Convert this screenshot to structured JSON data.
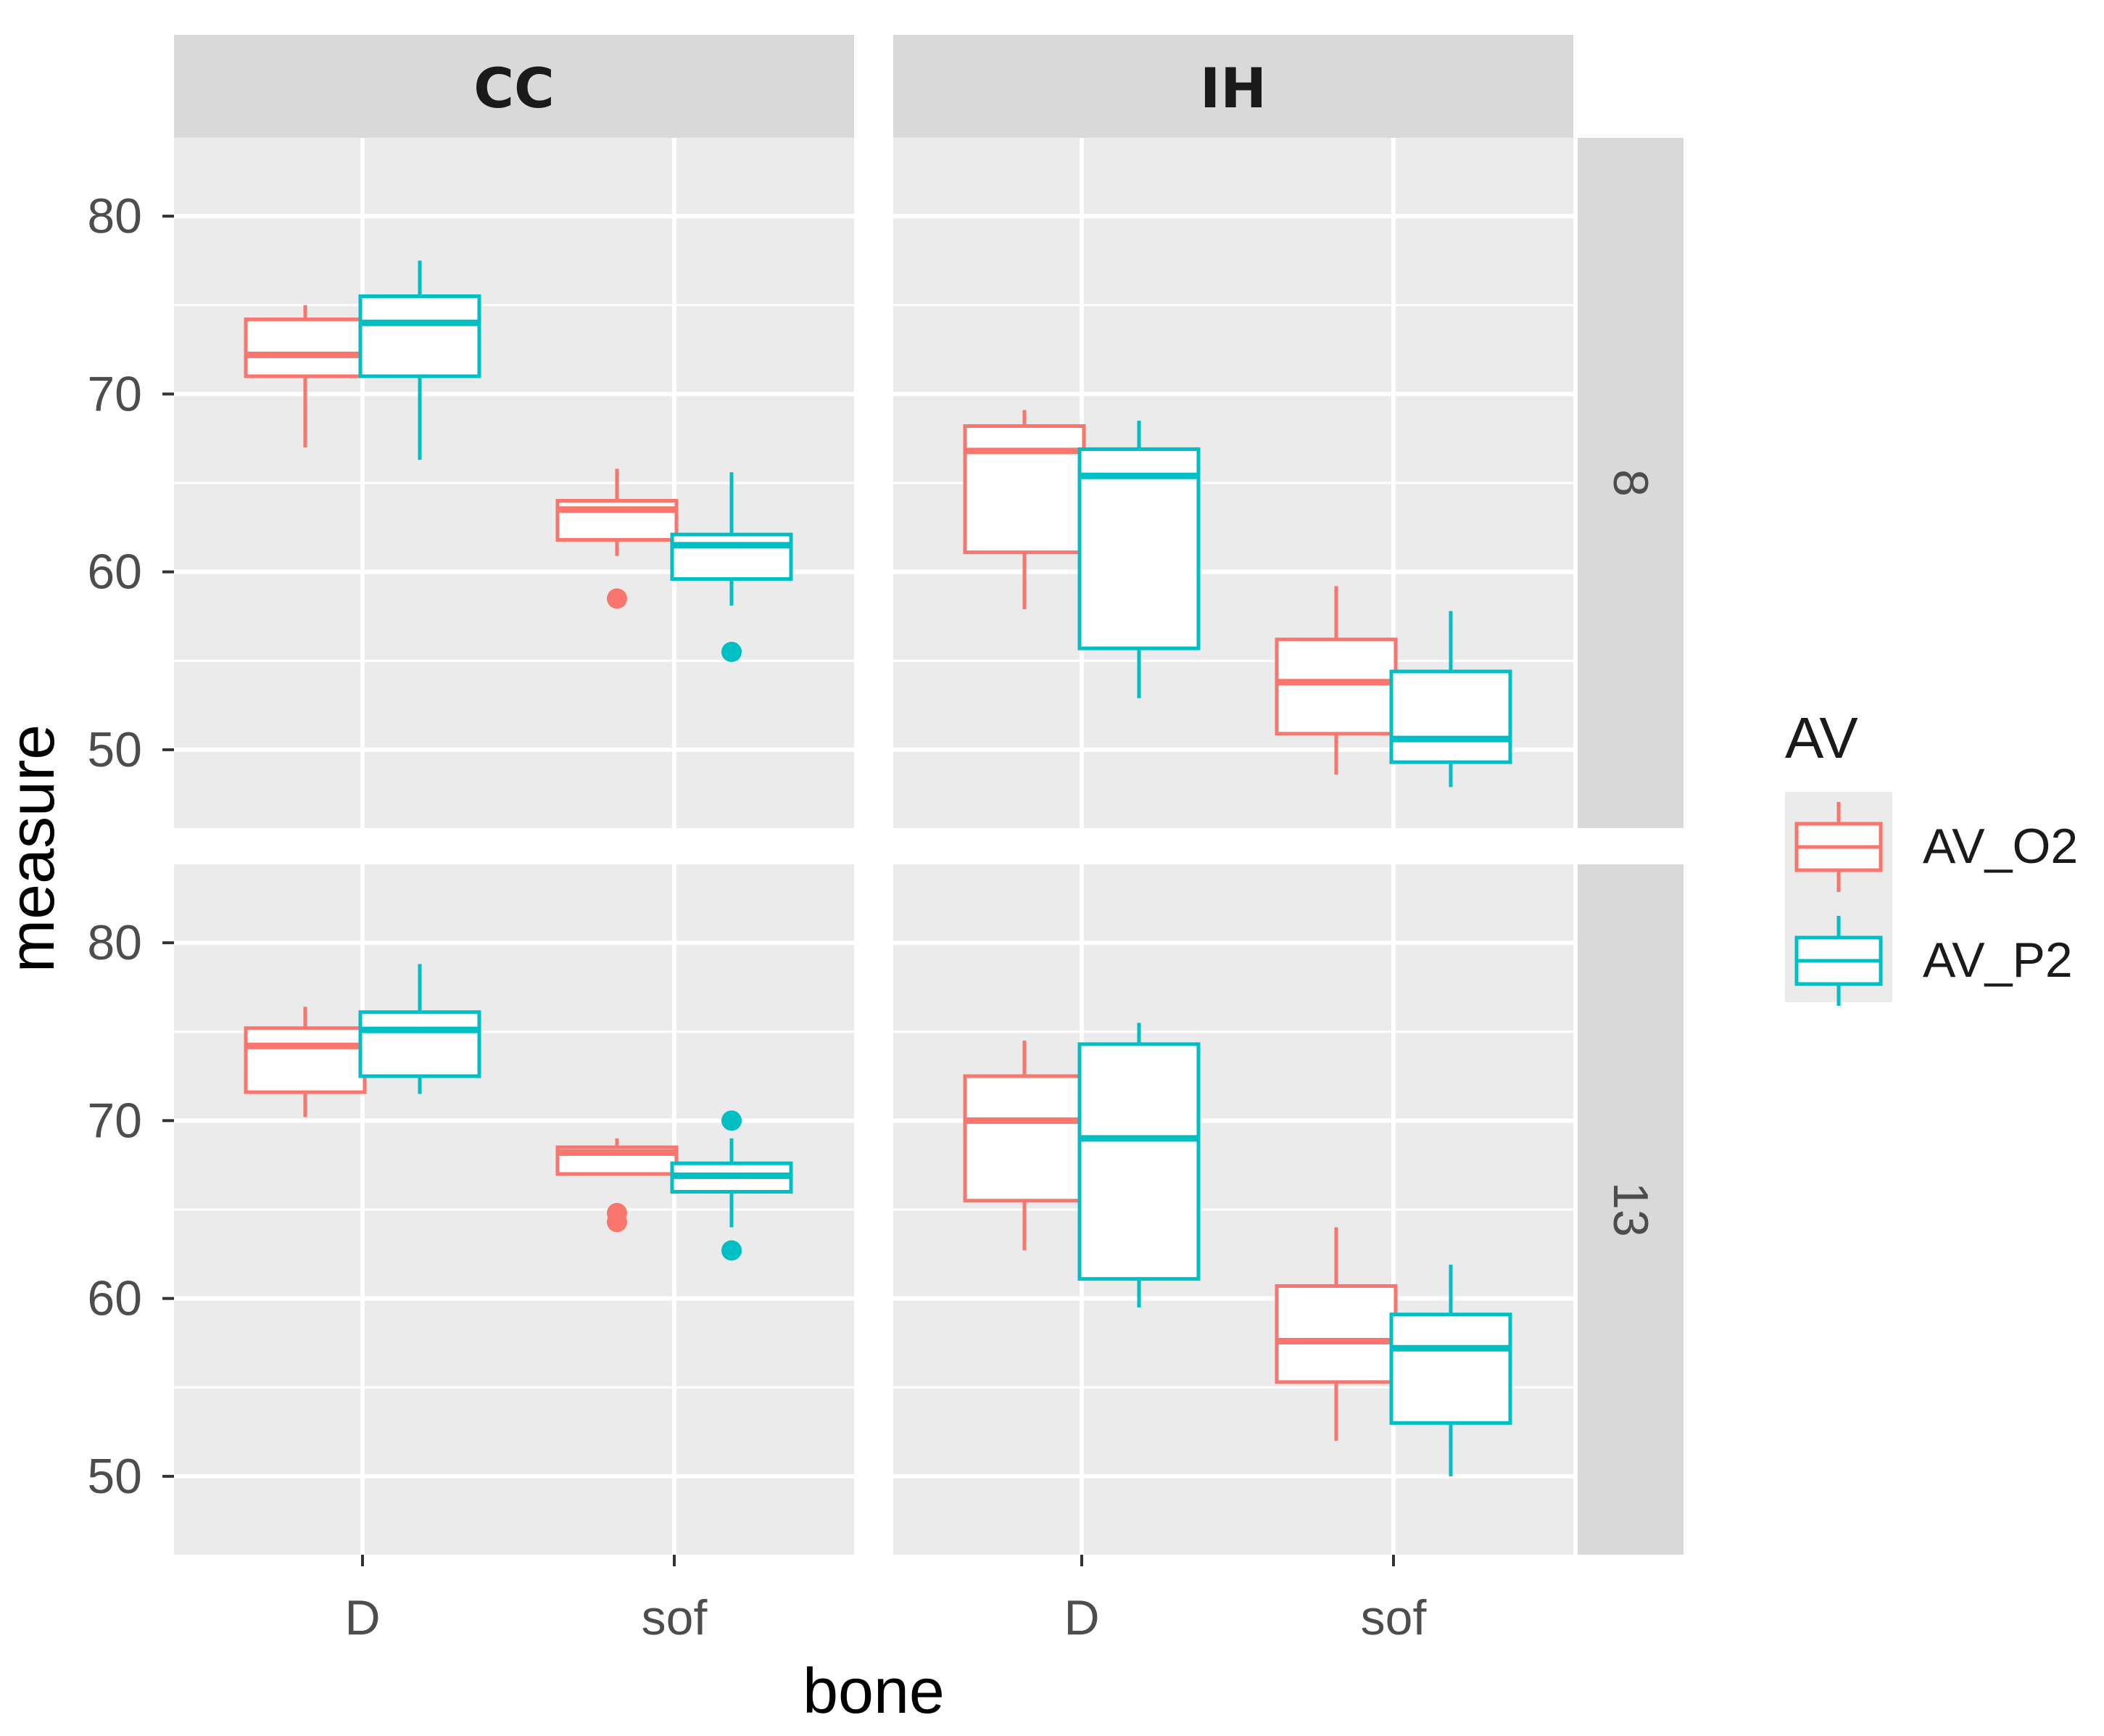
{
  "chart_data": {
    "type": "boxplot",
    "xlabel": "bone",
    "ylabel": "measure",
    "ylim": [
      46,
      84
    ],
    "yticks": [
      50,
      60,
      70,
      80
    ],
    "categories": [
      "D",
      "sof"
    ],
    "facet_cols": [
      "CC",
      "IH"
    ],
    "facet_rows": [
      "8",
      "13"
    ],
    "legend": {
      "title": "AV",
      "position": "right",
      "entries": [
        {
          "name": "AV_O2",
          "color": "#F8766D"
        },
        {
          "name": "AV_P2",
          "color": "#00BFC4"
        }
      ]
    },
    "panels": [
      {
        "col": "CC",
        "row": "8",
        "boxes": [
          {
            "category": "D",
            "series": "AV_O2",
            "min": 67.0,
            "q1": 71.0,
            "median": 72.2,
            "q3": 74.2,
            "max": 75.0,
            "outliers": []
          },
          {
            "category": "D",
            "series": "AV_P2",
            "min": 66.3,
            "q1": 71.0,
            "median": 74.0,
            "q3": 75.5,
            "max": 77.5,
            "outliers": []
          },
          {
            "category": "sof",
            "series": "AV_O2",
            "min": 60.9,
            "q1": 61.8,
            "median": 63.5,
            "q3": 64.0,
            "max": 65.8,
            "outliers": [
              58.5
            ]
          },
          {
            "category": "sof",
            "series": "AV_P2",
            "min": 58.1,
            "q1": 59.6,
            "median": 61.5,
            "q3": 62.1,
            "max": 65.6,
            "outliers": [
              55.5
            ]
          }
        ]
      },
      {
        "col": "IH",
        "row": "8",
        "boxes": [
          {
            "category": "D",
            "series": "AV_O2",
            "min": 57.9,
            "q1": 61.1,
            "median": 66.8,
            "q3": 68.2,
            "max": 69.1,
            "outliers": []
          },
          {
            "category": "D",
            "series": "AV_P2",
            "min": 52.9,
            "q1": 55.7,
            "median": 65.4,
            "q3": 66.9,
            "max": 68.5,
            "outliers": []
          },
          {
            "category": "sof",
            "series": "AV_O2",
            "min": 48.6,
            "q1": 50.9,
            "median": 53.8,
            "q3": 56.2,
            "max": 59.2,
            "outliers": []
          },
          {
            "category": "sof",
            "series": "AV_P2",
            "min": 47.9,
            "q1": 49.3,
            "median": 50.6,
            "q3": 54.4,
            "max": 57.8,
            "outliers": []
          }
        ]
      },
      {
        "col": "CC",
        "row": "13",
        "boxes": [
          {
            "category": "D",
            "series": "AV_O2",
            "min": 70.2,
            "q1": 71.6,
            "median": 74.2,
            "q3": 75.2,
            "max": 76.4,
            "outliers": []
          },
          {
            "category": "D",
            "series": "AV_P2",
            "min": 71.5,
            "q1": 72.5,
            "median": 75.1,
            "q3": 76.1,
            "max": 78.8,
            "outliers": []
          },
          {
            "category": "sof",
            "series": "AV_O2",
            "min": 67.0,
            "q1": 67.0,
            "median": 68.2,
            "q3": 68.5,
            "max": 69.0,
            "outliers": [
              64.3,
              64.8
            ]
          },
          {
            "category": "sof",
            "series": "AV_P2",
            "min": 64.0,
            "q1": 66.0,
            "median": 66.9,
            "q3": 67.6,
            "max": 69.0,
            "outliers": [
              70.0,
              62.7
            ]
          }
        ]
      },
      {
        "col": "IH",
        "row": "13",
        "boxes": [
          {
            "category": "D",
            "series": "AV_O2",
            "min": 62.7,
            "q1": 65.5,
            "median": 70.0,
            "q3": 72.5,
            "max": 74.5,
            "outliers": []
          },
          {
            "category": "D",
            "series": "AV_P2",
            "min": 59.5,
            "q1": 61.1,
            "median": 69.0,
            "q3": 74.3,
            "max": 75.5,
            "outliers": []
          },
          {
            "category": "sof",
            "series": "AV_O2",
            "min": 52.0,
            "q1": 55.3,
            "median": 57.6,
            "q3": 60.7,
            "max": 64.0,
            "outliers": []
          },
          {
            "category": "sof",
            "series": "AV_P2",
            "min": 50.0,
            "q1": 53.0,
            "median": 57.2,
            "q3": 59.1,
            "max": 61.9,
            "outliers": []
          }
        ]
      }
    ]
  }
}
